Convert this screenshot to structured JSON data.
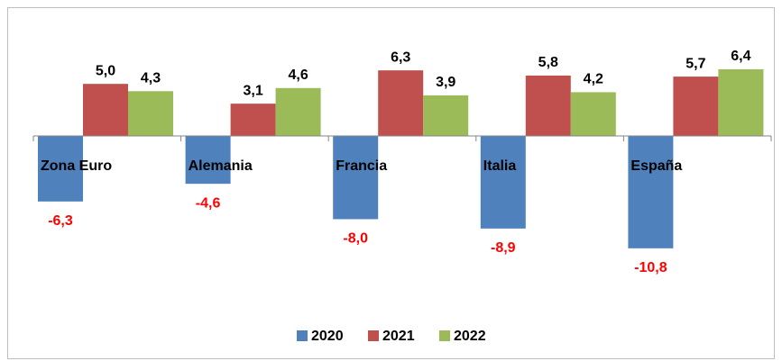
{
  "chart_data": {
    "type": "bar",
    "categories": [
      "Zona Euro",
      "Alemania",
      "Francia",
      "Italia",
      "España"
    ],
    "series": [
      {
        "name": "2020",
        "color": "#4f81bd",
        "values": [
          -6.3,
          -4.6,
          -8.0,
          -8.9,
          -10.8
        ],
        "value_labels": [
          "-6,3",
          "-4,6",
          "-8,0",
          "-8,9",
          "-10,8"
        ]
      },
      {
        "name": "2021",
        "color": "#c0504d",
        "values": [
          5.0,
          3.1,
          6.3,
          5.8,
          5.7
        ],
        "value_labels": [
          "5,0",
          "3,1",
          "6,3",
          "5,8",
          "5,7"
        ]
      },
      {
        "name": "2022",
        "color": "#9bbb59",
        "values": [
          4.3,
          4.6,
          3.9,
          4.2,
          6.4
        ],
        "value_labels": [
          "4,3",
          "4,6",
          "3,9",
          "4,2",
          "6,4"
        ]
      }
    ],
    "ylim": [
      -12,
      8
    ],
    "negative_label_color": "#ff0000",
    "legend": "bottom"
  }
}
